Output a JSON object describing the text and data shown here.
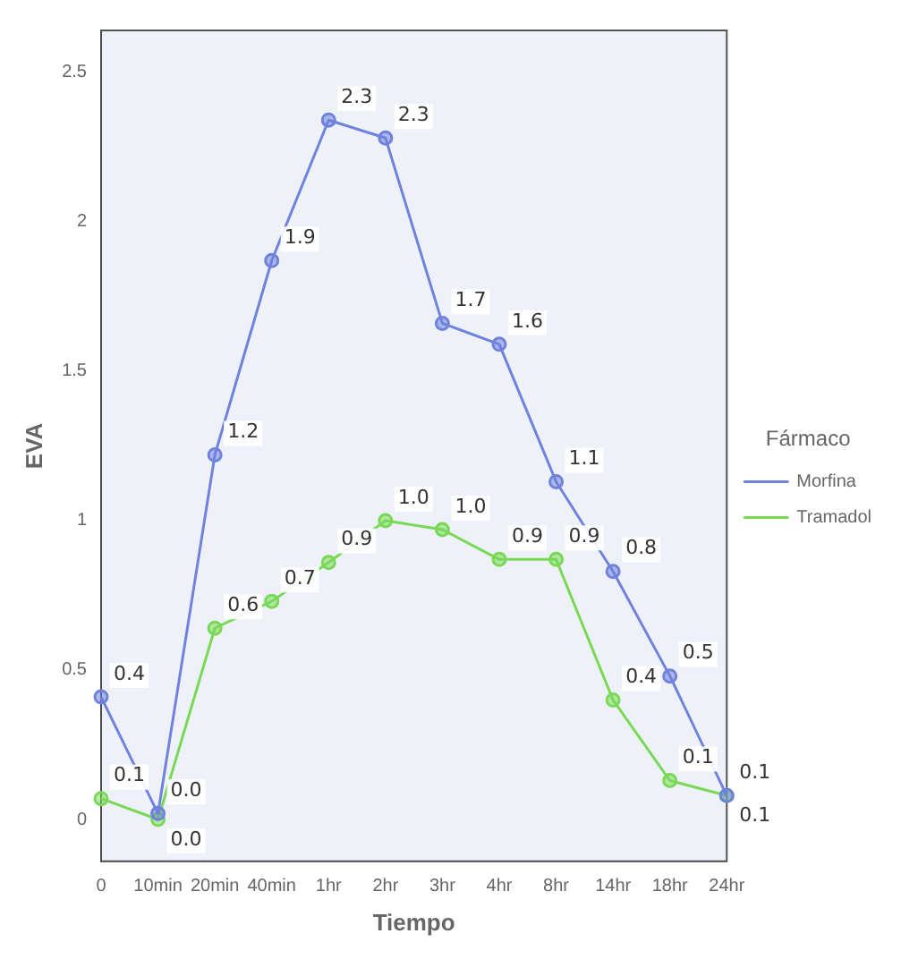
{
  "chart_data": {
    "type": "line",
    "xlabel": "Tiempo",
    "ylabel": "EVA",
    "legend_title": "Fármaco",
    "legend": "right",
    "marker": "circle",
    "grid": false,
    "categories": [
      "0",
      "10min",
      "20min",
      "40min",
      "1hr",
      "2hr",
      "3hr",
      "4hr",
      "8hr",
      "14hr",
      "18hr",
      "24hr"
    ],
    "ylim": [
      -0.14,
      2.64
    ],
    "yticks": [
      0,
      0.5,
      1,
      1.5,
      2,
      2.5
    ],
    "series": [
      {
        "name": "Morfina",
        "color": "#6f82dc",
        "values": [
          0.41,
          0.02,
          1.22,
          1.87,
          2.34,
          2.28,
          1.66,
          1.59,
          1.13,
          0.83,
          0.48,
          0.08
        ],
        "value_labels": [
          "0.4",
          "0.0",
          "1.2",
          "1.9",
          "2.3",
          "2.3",
          "1.7",
          "1.6",
          "1.1",
          "0.8",
          "0.5",
          "0.1"
        ]
      },
      {
        "name": "Tramadol",
        "color": "#79d957",
        "values": [
          0.07,
          0.0,
          0.64,
          0.73,
          0.86,
          1.0,
          0.97,
          0.87,
          0.87,
          0.4,
          0.13,
          0.08
        ],
        "value_labels": [
          "0.1",
          "0.0",
          "0.6",
          "0.7",
          "0.9",
          "1.0",
          "1.0",
          "0.9",
          "0.9",
          "0.4",
          "0.1",
          "0.1"
        ]
      }
    ]
  }
}
